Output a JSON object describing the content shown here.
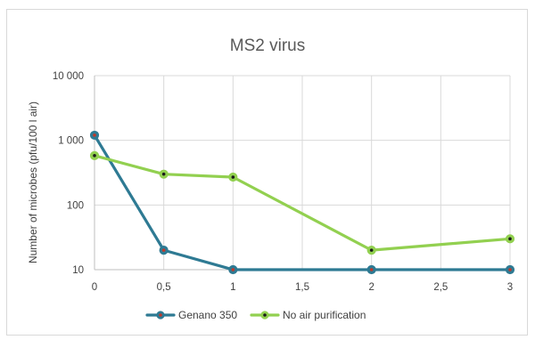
{
  "chart_data": {
    "type": "line",
    "title": "MS2 virus",
    "xlabel": "",
    "ylabel": "Number of microbes (pfu/100 l air)",
    "y_scale": "log",
    "ylim": [
      10,
      10000
    ],
    "xlim": [
      0,
      3
    ],
    "grid": true,
    "legend_position": "bottom",
    "x_ticks": [
      {
        "value": 0,
        "label": "0"
      },
      {
        "value": 0.5,
        "label": "0,5"
      },
      {
        "value": 1,
        "label": "1"
      },
      {
        "value": 1.5,
        "label": "1,5"
      },
      {
        "value": 2,
        "label": "2"
      },
      {
        "value": 2.5,
        "label": "2,5"
      },
      {
        "value": 3,
        "label": "3"
      }
    ],
    "y_ticks": [
      {
        "value": 10,
        "label": "10"
      },
      {
        "value": 100,
        "label": "100"
      },
      {
        "value": 1000,
        "label": "1 000"
      },
      {
        "value": 10000,
        "label": "10 000"
      }
    ],
    "series": [
      {
        "name": "Genano 350",
        "color": "#2e7a93",
        "marker_color": "#c0392b",
        "x": [
          0,
          0.5,
          1,
          2,
          3
        ],
        "values": [
          1200,
          20,
          10,
          10,
          10
        ]
      },
      {
        "name": "No air purification",
        "color": "#92d050",
        "marker_color": "#1a1a1a",
        "x": [
          0,
          0.5,
          1,
          2,
          3
        ],
        "values": [
          580,
          300,
          270,
          20,
          30
        ]
      }
    ]
  }
}
